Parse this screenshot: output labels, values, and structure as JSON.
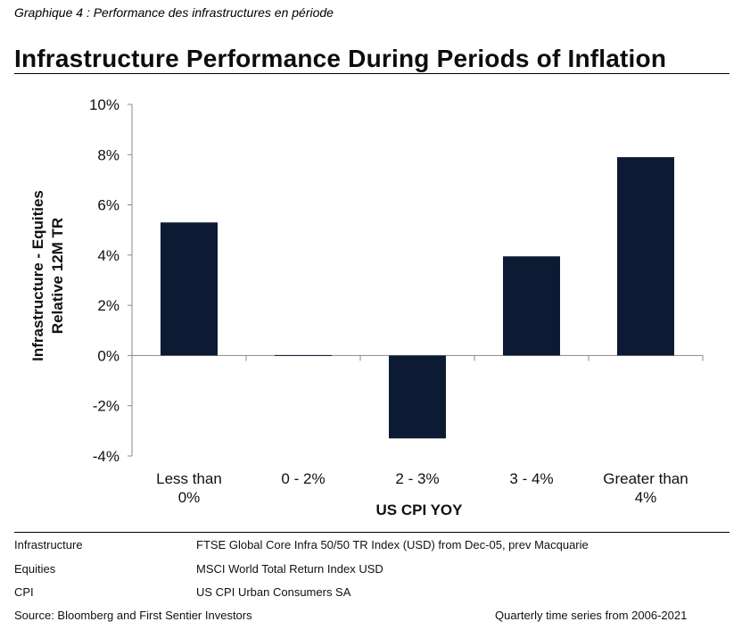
{
  "caption": "Graphique 4 : Performance des infrastructures en période",
  "chart_data": {
    "type": "bar",
    "title": "Infrastructure Performance During Periods of Inflation",
    "categories": [
      [
        "Less than",
        "0%"
      ],
      [
        "0 - 2%"
      ],
      [
        "2 - 3%"
      ],
      [
        "3 - 4%"
      ],
      [
        "Greater than",
        "4%"
      ]
    ],
    "values": [
      5.3,
      0.0,
      -3.3,
      3.95,
      7.9
    ],
    "ylabel": [
      "Infrastructure - Equities",
      "Relative 12M TR"
    ],
    "xlabel": "US CPI YOY",
    "ylim": [
      -4,
      10
    ],
    "yticks": [
      -4,
      -2,
      0,
      2,
      4,
      6,
      8,
      10
    ],
    "ytick_labels": [
      "-4%",
      "-2%",
      "0%",
      "2%",
      "4%",
      "6%",
      "8%",
      "10%"
    ],
    "bar_color": "#0c1a33",
    "grid": false,
    "legend": "none"
  },
  "notes": [
    {
      "label": "Infrastructure",
      "value": "FTSE Global Core Infra 50/50 TR Index (USD) from Dec-05, prev Macquarie"
    },
    {
      "label": "Equities",
      "value": "MSCI World Total Return Index USD"
    },
    {
      "label": "CPI",
      "value": "US CPI Urban Consumers SA"
    }
  ],
  "source": "Source: Bloomberg and First Sentier Investors",
  "period": "Quarterly time series from 2006-2021"
}
